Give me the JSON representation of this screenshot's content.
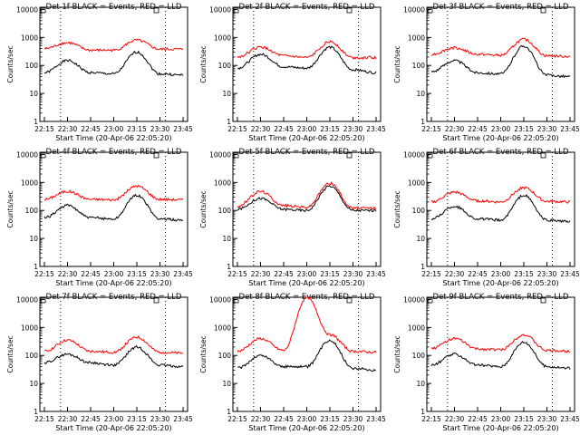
{
  "chart_data": [
    {
      "type": "line",
      "title": "Det 1f BLACK = Events, RED = LLD",
      "xlabel": "Start Time (20-Apr-06 22:05:20)",
      "ylabel": "Counts/sec",
      "yscale": "log",
      "ylim": [
        1,
        12000
      ],
      "x": [
        "22:15",
        "22:30",
        "22:45",
        "23:00",
        "23:15",
        "23:30",
        "23:45"
      ],
      "series": [
        {
          "name": "Events",
          "color": "#000000",
          "values": [
            55,
            150,
            55,
            50,
            300,
            50,
            45
          ]
        },
        {
          "name": "LLD",
          "color": "#ff0000",
          "values": [
            400,
            650,
            350,
            350,
            800,
            380,
            380
          ]
        }
      ]
    },
    {
      "type": "line",
      "title": "Det 2f BLACK = Events, RED = LLD",
      "xlabel": "Start Time (20-Apr-06 22:05:20)",
      "ylabel": "Counts/sec",
      "yscale": "log",
      "ylim": [
        1,
        12000
      ],
      "x": [
        "22:15",
        "22:30",
        "22:45",
        "23:00",
        "23:15",
        "23:30",
        "23:45"
      ],
      "series": [
        {
          "name": "Events",
          "color": "#000000",
          "values": [
            80,
            250,
            90,
            80,
            450,
            70,
            55
          ]
        },
        {
          "name": "LLD",
          "color": "#ff0000",
          "values": [
            200,
            450,
            220,
            190,
            700,
            190,
            190
          ]
        }
      ]
    },
    {
      "type": "line",
      "title": "Det 3f BLACK = Events, RED = LLD",
      "xlabel": "Start Time (20-Apr-06 22:05:20)",
      "ylabel": "Counts/sec",
      "yscale": "log",
      "ylim": [
        1,
        12000
      ],
      "x": [
        "22:15",
        "22:30",
        "22:45",
        "23:00",
        "23:15",
        "23:30",
        "23:45"
      ],
      "series": [
        {
          "name": "Events",
          "color": "#000000",
          "values": [
            60,
            150,
            55,
            50,
            500,
            45,
            40
          ]
        },
        {
          "name": "LLD",
          "color": "#ff0000",
          "values": [
            250,
            430,
            250,
            230,
            850,
            220,
            210
          ]
        }
      ]
    },
    {
      "type": "line",
      "title": "Det 4f BLACK = Events, RED = LLD",
      "xlabel": "Start Time (20-Apr-06 22:05:20)",
      "ylabel": "Counts/sec",
      "yscale": "log",
      "ylim": [
        1,
        12000
      ],
      "x": [
        "22:15",
        "22:30",
        "22:45",
        "23:00",
        "23:15",
        "23:30",
        "23:45"
      ],
      "series": [
        {
          "name": "Events",
          "color": "#000000",
          "values": [
            55,
            150,
            55,
            50,
            350,
            50,
            45
          ]
        },
        {
          "name": "LLD",
          "color": "#ff0000",
          "values": [
            250,
            480,
            250,
            240,
            750,
            250,
            240
          ]
        }
      ]
    },
    {
      "type": "line",
      "title": "Det 5f BLACK = Events, RED = LLD",
      "xlabel": "Start Time (20-Apr-06 22:05:20)",
      "ylabel": "Counts/sec",
      "yscale": "log",
      "ylim": [
        1,
        12000
      ],
      "x": [
        "22:15",
        "22:30",
        "22:45",
        "23:00",
        "23:15",
        "23:30",
        "23:45"
      ],
      "series": [
        {
          "name": "Events",
          "color": "#000000",
          "values": [
            110,
            270,
            110,
            100,
            750,
            100,
            100
          ]
        },
        {
          "name": "LLD",
          "color": "#ff0000",
          "values": [
            140,
            480,
            150,
            130,
            950,
            120,
            120
          ]
        }
      ]
    },
    {
      "type": "line",
      "title": "Det 6f BLACK = Events, RED = LLD",
      "xlabel": "Start Time (20-Apr-06 22:05:20)",
      "ylabel": "Counts/sec",
      "yscale": "log",
      "ylim": [
        1,
        12000
      ],
      "x": [
        "22:15",
        "22:30",
        "22:45",
        "23:00",
        "23:15",
        "23:30",
        "23:45"
      ],
      "series": [
        {
          "name": "Events",
          "color": "#000000",
          "values": [
            50,
            140,
            50,
            45,
            350,
            45,
            40
          ]
        },
        {
          "name": "LLD",
          "color": "#ff0000",
          "values": [
            200,
            450,
            220,
            200,
            650,
            210,
            200
          ]
        }
      ]
    },
    {
      "type": "line",
      "title": "Det 7f BLACK = Events, RED = LLD",
      "xlabel": "Start Time (20-Apr-06 22:05:20)",
      "ylabel": "Counts/sec",
      "yscale": "log",
      "ylim": [
        1,
        12000
      ],
      "x": [
        "22:15",
        "22:30",
        "22:45",
        "23:00",
        "23:15",
        "23:30",
        "23:45"
      ],
      "series": [
        {
          "name": "Events",
          "color": "#000000",
          "values": [
            55,
            110,
            55,
            45,
            200,
            45,
            40
          ]
        },
        {
          "name": "LLD",
          "color": "#ff0000",
          "values": [
            140,
            350,
            140,
            130,
            450,
            130,
            120
          ]
        }
      ]
    },
    {
      "type": "line",
      "title": "Det 8f BLACK = Events, RED = LLD",
      "xlabel": "Start Time (20-Apr-06 22:05:20)",
      "ylabel": "Counts/sec",
      "yscale": "log",
      "ylim": [
        1,
        12000
      ],
      "x": [
        "22:15",
        "22:30",
        "22:45",
        "23:00",
        "23:15",
        "23:30",
        "23:45"
      ],
      "series": [
        {
          "name": "Events",
          "color": "#000000",
          "values": [
            35,
            100,
            40,
            40,
            350,
            35,
            30
          ]
        },
        {
          "name": "LLD",
          "color": "#ff0000",
          "values": [
            140,
            400,
            150,
            12000,
            550,
            140,
            130
          ]
        }
      ]
    },
    {
      "type": "line",
      "title": "Det 9f BLACK = Events, RED = LLD",
      "xlabel": "Start Time (20-Apr-06 22:05:20)",
      "ylabel": "Counts/sec",
      "yscale": "log",
      "ylim": [
        1,
        12000
      ],
      "x": [
        "22:15",
        "22:30",
        "22:45",
        "23:00",
        "23:15",
        "23:30",
        "23:45"
      ],
      "series": [
        {
          "name": "Events",
          "color": "#000000",
          "values": [
            45,
            110,
            45,
            40,
            300,
            40,
            35
          ]
        },
        {
          "name": "LLD",
          "color": "#ff0000",
          "values": [
            180,
            400,
            170,
            160,
            550,
            150,
            140
          ]
        }
      ]
    }
  ],
  "y_ticks": [
    "1",
    "10",
    "100",
    "1000",
    "10000"
  ]
}
